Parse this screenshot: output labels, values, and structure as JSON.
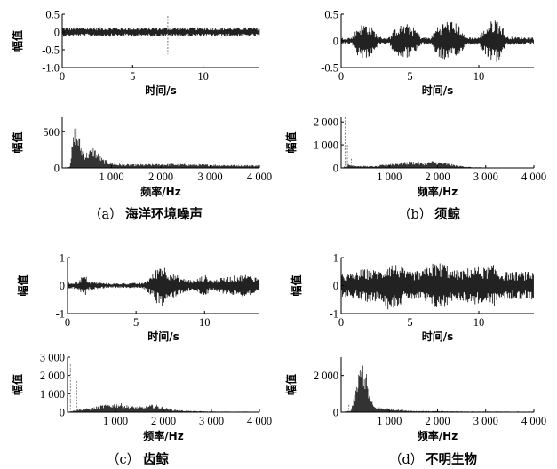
{
  "panels": [
    {
      "caption": "（a）海洋环境噪声",
      "caption_paren": "（a）",
      "caption_name": "海洋环境噪声",
      "time": {
        "ylabel": "幅值",
        "xlabel": "时间/s",
        "xlim": [
          0,
          14
        ],
        "ylim": [
          -1,
          0.5
        ],
        "xticks": [
          0,
          5,
          10
        ],
        "xtick_labels": [
          "0",
          "5",
          "10"
        ],
        "yticks": [
          0.5,
          0,
          -0.5,
          -1
        ],
        "ytick_labels": [
          "0.5",
          "0",
          "-0.5",
          "-1.0"
        ],
        "envelope": [
          [
            0,
            0.13
          ],
          [
            14,
            0.13
          ]
        ],
        "spikes": [
          [
            7.5,
            -0.62,
            0.45
          ]
        ]
      },
      "freq": {
        "ylabel": "幅值",
        "xlabel": "频率/Hz",
        "xlim": [
          0,
          4000
        ],
        "ylim": [
          0,
          700
        ],
        "xticks": [
          1000,
          2000,
          3000,
          4000
        ],
        "xtick_labels": [
          "1 000",
          "2 000",
          "3 000",
          "4 000"
        ],
        "yticks": [
          500,
          0
        ],
        "ytick_labels": [
          "500",
          "0"
        ],
        "spectrum": [
          [
            0,
            0
          ],
          [
            150,
            20
          ],
          [
            230,
            480
          ],
          [
            270,
            650
          ],
          [
            320,
            520
          ],
          [
            400,
            300
          ],
          [
            480,
            220
          ],
          [
            560,
            260
          ],
          [
            640,
            310
          ],
          [
            720,
            220
          ],
          [
            820,
            130
          ],
          [
            950,
            90
          ],
          [
            1100,
            60
          ],
          [
            1400,
            50
          ],
          [
            1800,
            55
          ],
          [
            2200,
            60
          ],
          [
            2600,
            55
          ],
          [
            3000,
            50
          ],
          [
            3500,
            45
          ],
          [
            4000,
            40
          ]
        ],
        "spikes": []
      }
    },
    {
      "caption": "（b）须鲸",
      "caption_paren": "（b）",
      "caption_name": "须鲸",
      "time": {
        "ylabel": "",
        "xlabel": "时间/s",
        "xlim": [
          0,
          14
        ],
        "ylim": [
          -0.5,
          0.5
        ],
        "xticks": [
          0,
          5,
          10
        ],
        "xtick_labels": [
          "0",
          "5",
          "10"
        ],
        "yticks": [
          0.5,
          0,
          -0.5
        ],
        "ytick_labels": [
          "0.5",
          "0",
          "-0.5"
        ],
        "envelope": [
          [
            0,
            0.06
          ],
          [
            0.8,
            0.07
          ],
          [
            1.2,
            0.28
          ],
          [
            1.8,
            0.35
          ],
          [
            2.3,
            0.25
          ],
          [
            2.7,
            0.08
          ],
          [
            3.5,
            0.07
          ],
          [
            4.0,
            0.28
          ],
          [
            4.8,
            0.32
          ],
          [
            5.4,
            0.24
          ],
          [
            5.8,
            0.08
          ],
          [
            6.5,
            0.06
          ],
          [
            7.0,
            0.3
          ],
          [
            7.8,
            0.4
          ],
          [
            8.6,
            0.3
          ],
          [
            9.0,
            0.08
          ],
          [
            10.0,
            0.07
          ],
          [
            10.6,
            0.3
          ],
          [
            11.2,
            0.45
          ],
          [
            11.7,
            0.3
          ],
          [
            12.0,
            0.08
          ],
          [
            14.0,
            0.07
          ]
        ],
        "spikes": []
      },
      "freq": {
        "ylabel": "幅值",
        "xlabel": "频率/Hz",
        "xlim": [
          0,
          4000
        ],
        "ylim": [
          0,
          2200
        ],
        "xticks": [
          1000,
          2000,
          3000,
          4000
        ],
        "xtick_labels": [
          "1 000",
          "2 000",
          "3 000",
          "4 000"
        ],
        "yticks": [
          2000,
          1000,
          0
        ],
        "ytick_labels": [
          "2 000",
          "1 000",
          "0"
        ],
        "spectrum": [
          [
            0,
            0
          ],
          [
            150,
            150
          ],
          [
            400,
            100
          ],
          [
            700,
            80
          ],
          [
            1000,
            200
          ],
          [
            1300,
            260
          ],
          [
            1500,
            300
          ],
          [
            1700,
            220
          ],
          [
            1900,
            320
          ],
          [
            2100,
            250
          ],
          [
            2400,
            120
          ],
          [
            2700,
            40
          ],
          [
            3000,
            20
          ],
          [
            4000,
            15
          ]
        ],
        "spikes": [
          [
            80,
            2200
          ],
          [
            130,
            1000
          ],
          [
            210,
            400
          ]
        ]
      }
    },
    {
      "caption": "（c）齿鲸",
      "caption_paren": "（c）",
      "caption_name": "齿鲸",
      "time": {
        "ylabel": "幅值",
        "xlabel": "时间/s",
        "xlim": [
          0,
          14
        ],
        "ylim": [
          -1,
          1
        ],
        "xticks": [
          0,
          5,
          10
        ],
        "xtick_labels": [
          "0",
          "5",
          "10"
        ],
        "yticks": [
          1,
          0,
          -1
        ],
        "ytick_labels": [
          "1",
          "0",
          "-1"
        ],
        "envelope": [
          [
            0,
            0.1
          ],
          [
            0.8,
            0.15
          ],
          [
            1.2,
            0.45
          ],
          [
            1.6,
            0.15
          ],
          [
            3,
            0.08
          ],
          [
            5.5,
            0.1
          ],
          [
            6.2,
            0.4
          ],
          [
            6.8,
            0.85
          ],
          [
            7.5,
            0.5
          ],
          [
            8.5,
            0.25
          ],
          [
            9.3,
            0.2
          ],
          [
            10,
            0.4
          ],
          [
            10.5,
            0.2
          ],
          [
            12,
            0.35
          ],
          [
            13,
            0.4
          ],
          [
            14,
            0.3
          ]
        ],
        "spikes": []
      },
      "freq": {
        "ylabel": "幅值",
        "xlabel": "频率/Hz",
        "xlim": [
          0,
          4000
        ],
        "ylim": [
          0,
          3000
        ],
        "xticks": [
          1000,
          2000,
          3000,
          4000
        ],
        "xtick_labels": [
          "1 000",
          "2 000",
          "3 000",
          "4 000"
        ],
        "yticks": [
          3000,
          2000,
          1000,
          0
        ],
        "ytick_labels": [
          "3 000",
          "2 000",
          "1 000",
          "0"
        ],
        "spectrum": [
          [
            0,
            0
          ],
          [
            200,
            150
          ],
          [
            500,
            250
          ],
          [
            800,
            450
          ],
          [
            1100,
            500
          ],
          [
            1300,
            350
          ],
          [
            1600,
            300
          ],
          [
            1800,
            450
          ],
          [
            2000,
            300
          ],
          [
            2200,
            150
          ],
          [
            2500,
            80
          ],
          [
            3000,
            40
          ],
          [
            4000,
            30
          ]
        ],
        "spikes": [
          [
            60,
            2600
          ],
          [
            190,
            1700
          ]
        ]
      }
    },
    {
      "caption": "（d）不明生物",
      "caption_paren": "（d）",
      "caption_name": "不明生物",
      "time": {
        "ylabel": "幅值",
        "xlabel": "时间/s",
        "xlim": [
          0,
          14
        ],
        "ylim": [
          -1,
          1
        ],
        "xticks": [
          0,
          5,
          10
        ],
        "xtick_labels": [
          "0",
          "5",
          "10"
        ],
        "yticks": [
          1,
          0,
          -1
        ],
        "ytick_labels": [
          "1",
          "0",
          "-1"
        ],
        "envelope": [
          [
            0,
            0.4
          ],
          [
            1,
            0.45
          ],
          [
            1.5,
            0.6
          ],
          [
            3,
            0.55
          ],
          [
            3.4,
            0.85
          ],
          [
            4.2,
            0.75
          ],
          [
            4.8,
            0.5
          ],
          [
            6.0,
            0.55
          ],
          [
            6.4,
            0.8
          ],
          [
            7.5,
            0.85
          ],
          [
            8.0,
            0.55
          ],
          [
            9.0,
            0.55
          ],
          [
            9.4,
            0.7
          ],
          [
            10.5,
            0.65
          ],
          [
            11.1,
            0.75
          ],
          [
            11.5,
            0.5
          ],
          [
            14,
            0.5
          ]
        ],
        "spikes": []
      },
      "freq": {
        "ylabel": "幅值",
        "xlabel": "频率/Hz",
        "xlim": [
          0,
          4000
        ],
        "ylim": [
          0,
          3000
        ],
        "xticks": [
          1000,
          2000,
          3000,
          4000
        ],
        "xtick_labels": [
          "1 000",
          "2 000",
          "3 000",
          "4 000"
        ],
        "yticks": [
          2000,
          0
        ],
        "ytick_labels": [
          "2 000",
          "0"
        ],
        "spectrum": [
          [
            0,
            0
          ],
          [
            200,
            100
          ],
          [
            300,
            1200
          ],
          [
            380,
            2500
          ],
          [
            450,
            2900
          ],
          [
            520,
            2200
          ],
          [
            600,
            800
          ],
          [
            700,
            300
          ],
          [
            900,
            250
          ],
          [
            1200,
            150
          ],
          [
            1500,
            80
          ],
          [
            2000,
            60
          ],
          [
            3000,
            40
          ],
          [
            4000,
            30
          ]
        ],
        "spikes": [
          [
            100,
            500
          ],
          [
            160,
            400
          ]
        ]
      }
    }
  ]
}
